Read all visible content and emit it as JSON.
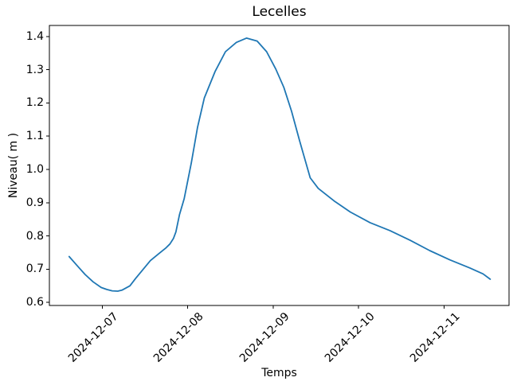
{
  "figure": {
    "title": "Lecelles",
    "xlabel": "Temps",
    "ylabel": "Niveau( m )"
  },
  "chart_data": {
    "type": "line",
    "title": "Lecelles",
    "xlabel": "Temps",
    "ylabel": "Niveau( m )",
    "line_color": "#1f77b4",
    "grid": false,
    "legend": false,
    "ylim": [
      0.591,
      1.433
    ],
    "x_range_days_from_2024_12_06": [
      0.38,
      5.762
    ],
    "y_ticks": [
      0.6,
      0.7,
      0.8,
      0.9,
      1.0,
      1.1,
      1.2,
      1.3,
      1.4
    ],
    "x_tick_days": [
      1,
      2,
      3,
      4,
      5
    ],
    "x_tick_labels": [
      "2024-12-07",
      "2024-12-08",
      "2024-12-09",
      "2024-12-10",
      "2024-12-11"
    ],
    "points": [
      [
        "2024-12-06T14:40",
        0.738
      ],
      [
        "2024-12-06T17:00",
        0.71
      ],
      [
        "2024-12-06T19:10",
        0.684
      ],
      [
        "2024-12-06T21:25",
        0.662
      ],
      [
        "2024-12-06T23:40",
        0.645
      ],
      [
        "2024-12-07T01:15",
        0.639
      ],
      [
        "2024-12-07T02:45",
        0.635
      ],
      [
        "2024-12-07T04:20",
        0.634
      ],
      [
        "2024-12-07T05:30",
        0.637
      ],
      [
        "2024-12-07T07:45",
        0.65
      ],
      [
        "2024-12-07T09:20",
        0.672
      ],
      [
        "2024-12-07T11:30",
        0.7
      ],
      [
        "2024-12-07T13:30",
        0.726
      ],
      [
        "2024-12-07T16:00",
        0.748
      ],
      [
        "2024-12-07T17:45",
        0.763
      ],
      [
        "2024-12-07T19:00",
        0.776
      ],
      [
        "2024-12-07T20:00",
        0.793
      ],
      [
        "2024-12-07T20:40",
        0.812
      ],
      [
        "2024-12-07T21:40",
        0.864
      ],
      [
        "2024-12-07T23:00",
        0.912
      ],
      [
        "2024-12-08T01:00",
        1.019
      ],
      [
        "2024-12-08T02:45",
        1.127
      ],
      [
        "2024-12-08T04:40",
        1.215
      ],
      [
        "2024-12-08T07:40",
        1.294
      ],
      [
        "2024-12-08T10:35",
        1.354
      ],
      [
        "2024-12-08T13:40",
        1.382
      ],
      [
        "2024-12-08T16:30",
        1.395
      ],
      [
        "2024-12-08T19:30",
        1.386
      ],
      [
        "2024-12-08T22:10",
        1.354
      ],
      [
        "2024-12-09T00:45",
        1.302
      ],
      [
        "2024-12-09T03:00",
        1.247
      ],
      [
        "2024-12-09T05:10",
        1.175
      ],
      [
        "2024-12-09T07:25",
        1.087
      ],
      [
        "2024-12-09T10:25",
        0.975
      ],
      [
        "2024-12-09T12:40",
        0.943
      ],
      [
        "2024-12-09T17:10",
        0.905
      ],
      [
        "2024-12-09T21:40",
        0.872
      ],
      [
        "2024-12-10T03:15",
        0.84
      ],
      [
        "2024-12-10T08:50",
        0.816
      ],
      [
        "2024-12-10T14:30",
        0.787
      ],
      [
        "2024-12-10T20:00",
        0.756
      ],
      [
        "2024-12-11T01:40",
        0.728
      ],
      [
        "2024-12-11T07:15",
        0.704
      ],
      [
        "2024-12-11T11:00",
        0.686
      ],
      [
        "2024-12-11T13:00",
        0.67
      ]
    ]
  }
}
